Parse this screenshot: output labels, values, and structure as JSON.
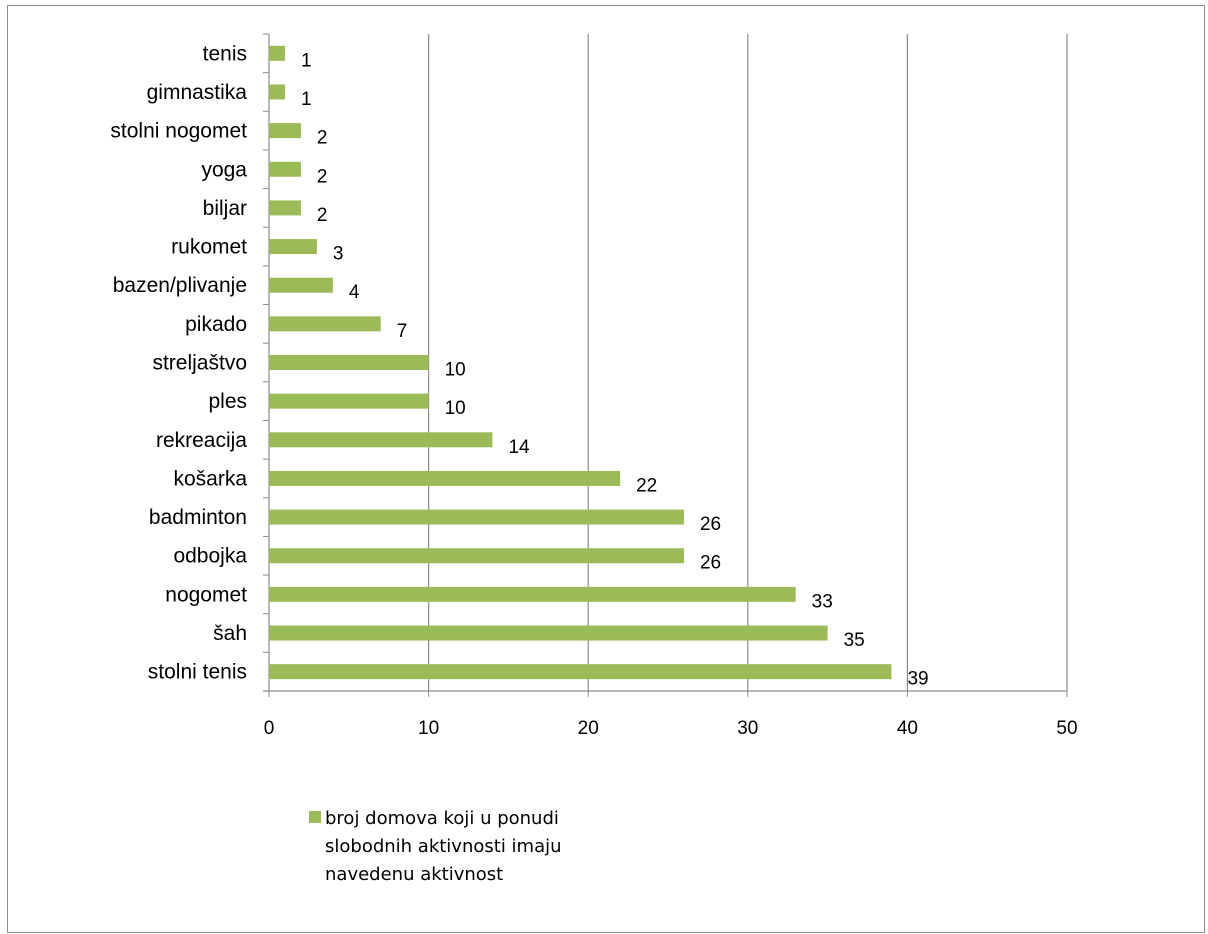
{
  "chart_data": {
    "type": "bar",
    "orientation": "horizontal",
    "categories": [
      "tenis",
      "gimnastika",
      "stolni nogomet",
      "yoga",
      "biljar",
      "rukomet",
      "bazen/plivanje",
      "pikado",
      "streljaštvo",
      "ples",
      "rekreacija",
      "košarka",
      "badminton",
      "odbojka",
      "nogomet",
      "šah",
      "stolni tenis"
    ],
    "series": [
      {
        "name": "broj domova koji u ponudi slobodnih aktivnosti imaju navedenu aktivnost",
        "values": [
          1,
          1,
          2,
          2,
          2,
          3,
          4,
          7,
          10,
          10,
          14,
          22,
          26,
          26,
          33,
          35,
          39
        ],
        "color": "#9bbb59"
      }
    ],
    "xticks": [
      "0",
      "10",
      "20",
      "30",
      "40",
      "50"
    ],
    "xlim": [
      0,
      50
    ],
    "grid": "vertical",
    "legend_position": "bottom-left",
    "title": "",
    "xlabel": "",
    "ylabel": ""
  },
  "legend": {
    "label": "broj domova koji u ponudi slobodnih aktivnosti imaju navedenu aktivnost",
    "color": "#9bbb59"
  }
}
